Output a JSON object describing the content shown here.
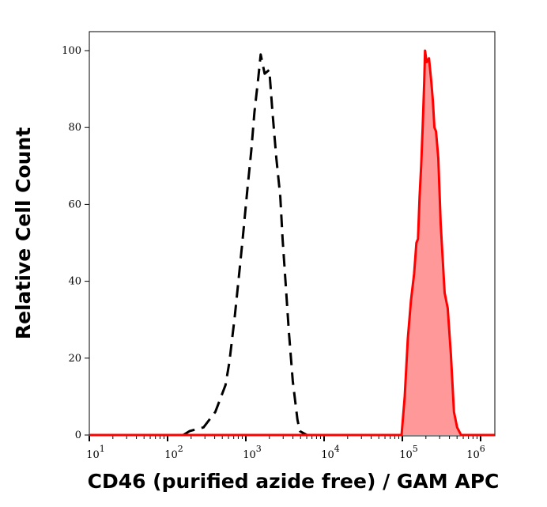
{
  "chart_data": {
    "type": "area",
    "title": "",
    "xlabel": "CD46 (purified azide free) / GAM APC",
    "ylabel": "Relative Cell Count",
    "xscale": "log",
    "xlim": [
      10,
      1500000
    ],
    "ylim": [
      0,
      105
    ],
    "x_ticks": [
      {
        "base": "10",
        "exp": "1"
      },
      {
        "base": "10",
        "exp": "2"
      },
      {
        "base": "10",
        "exp": "3"
      },
      {
        "base": "10",
        "exp": "4"
      },
      {
        "base": "10",
        "exp": "5"
      },
      {
        "base": "10",
        "exp": "6"
      }
    ],
    "y_ticks": [
      "0",
      "20",
      "40",
      "60",
      "80",
      "100"
    ],
    "grid": false,
    "series": [
      {
        "style": "dashed",
        "color": "#000000",
        "fill": "none",
        "log10_x": [
          2.2,
          2.28,
          2.46,
          2.61,
          2.74,
          2.79,
          2.86,
          2.92,
          2.96,
          3.02,
          3.07,
          3.11,
          3.16,
          3.19,
          3.24,
          3.3,
          3.34,
          3.39,
          3.44,
          3.47,
          3.51,
          3.55,
          3.6,
          3.66,
          3.69,
          3.78
        ],
        "y": [
          0,
          1,
          2,
          6,
          13,
          19,
          31,
          43,
          51,
          64,
          74,
          84,
          93,
          99,
          94,
          95,
          84,
          72,
          62,
          51,
          39,
          27,
          14,
          4,
          1,
          0
        ]
      },
      {
        "style": "solid",
        "color": "#ff0000",
        "fill": "#ff9999",
        "log10_x": [
          1,
          4.97,
          4.99,
          5.03,
          5.07,
          5.11,
          5.15,
          5.18,
          5.2,
          5.22,
          5.24,
          5.26,
          5.28,
          5.29,
          5.31,
          5.34,
          5.37,
          5.39,
          5.41,
          5.43,
          5.46,
          5.49,
          5.54,
          5.58,
          5.62,
          5.66,
          5.7,
          5.75,
          6.18
        ],
        "y": [
          0,
          0,
          0,
          10,
          25,
          35,
          42,
          50,
          51,
          62,
          70,
          80,
          92,
          100,
          97,
          98,
          92,
          87,
          80,
          79,
          72,
          55,
          37,
          33,
          21,
          6,
          2,
          0,
          0
        ]
      }
    ]
  }
}
